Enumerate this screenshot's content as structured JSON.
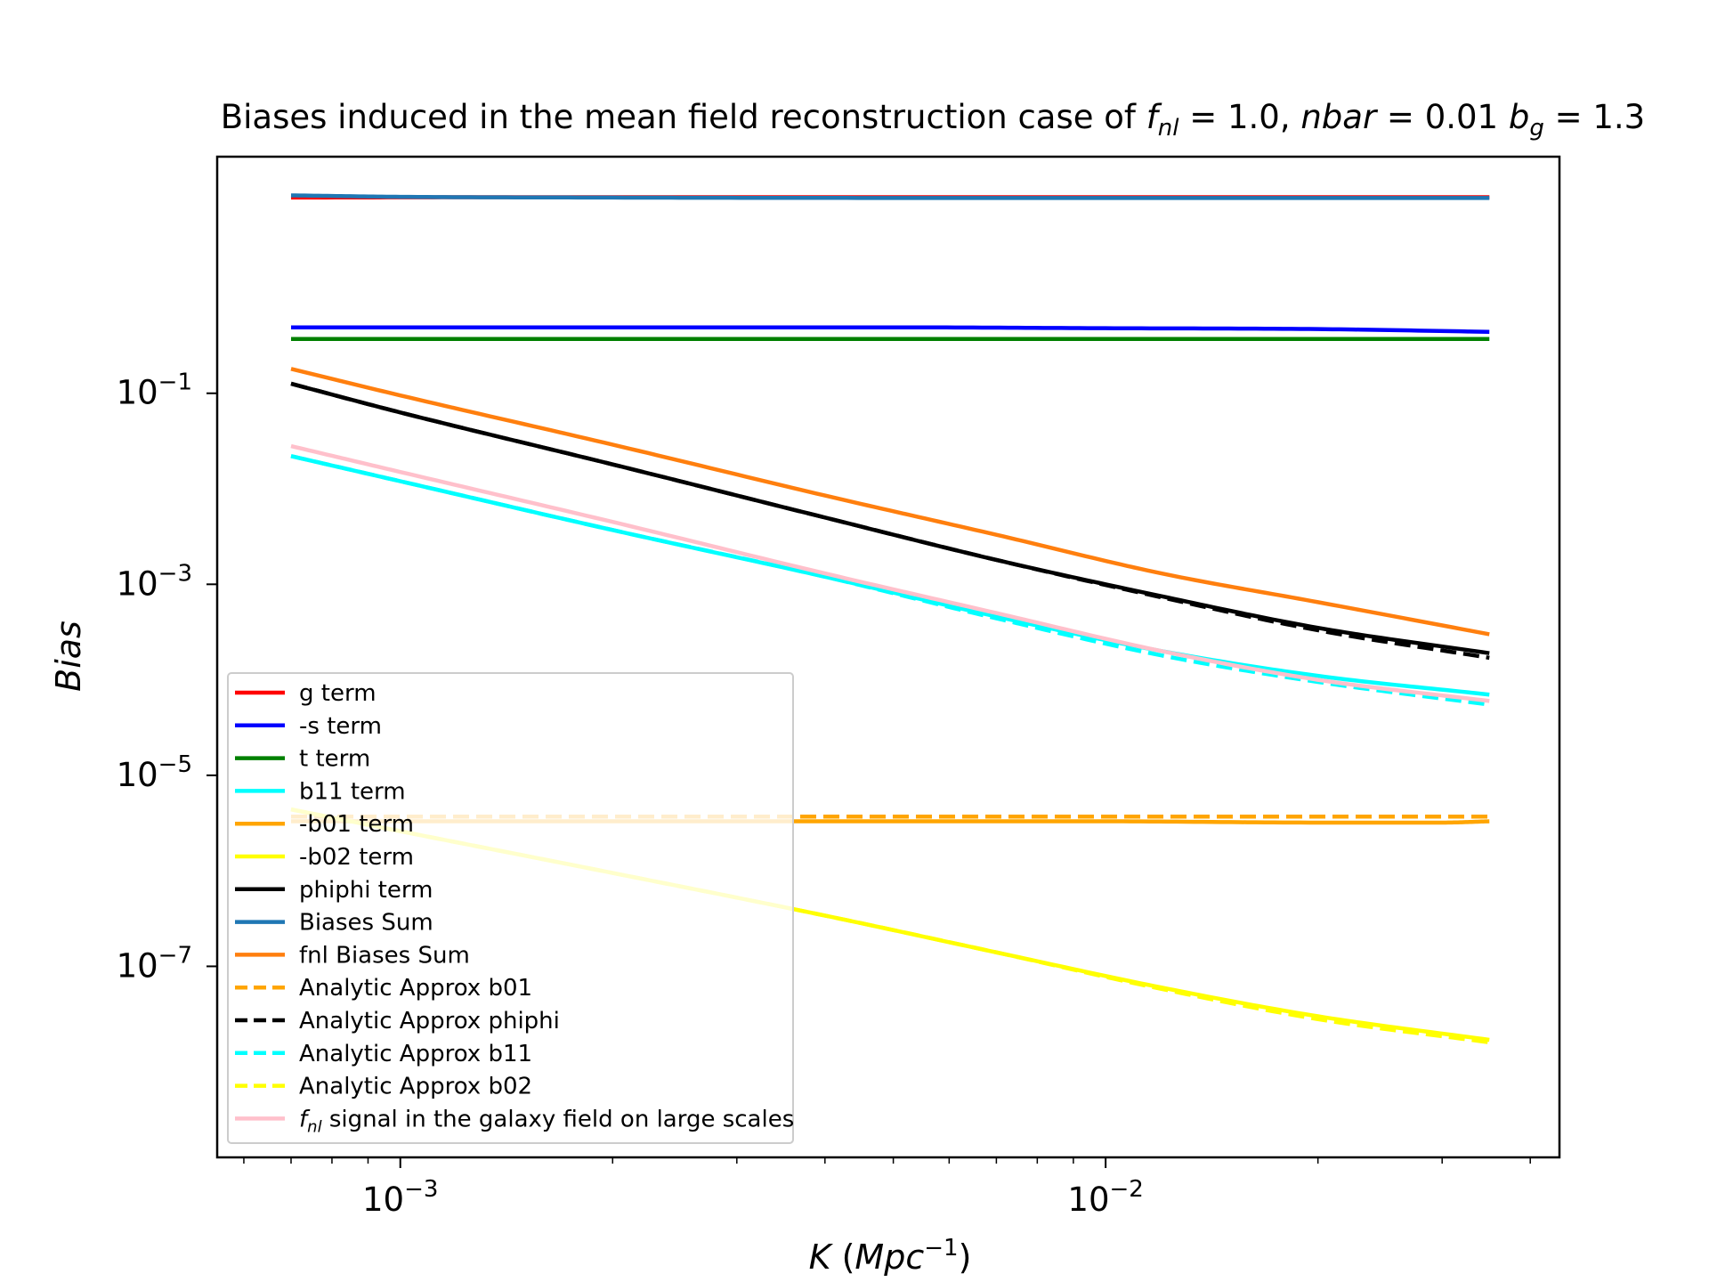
{
  "chart_data": {
    "type": "line",
    "title": {
      "prefix": "Biases induced in the mean field reconstruction case of ",
      "fnl_sym": "f",
      "fnl_sub": "nl",
      "fnl_eq": " = 1.0, ",
      "nbar_sym": "nbar",
      "nbar_eq": " = 0.01 ",
      "bg_sym": "b",
      "bg_sub": "g",
      "bg_eq": " = 1.3"
    },
    "xlabel": {
      "sym": "K",
      "unit_open": " (",
      "unit": "Mpc",
      "unit_sup": "−1",
      "unit_close": ")"
    },
    "ylabel": "Bias",
    "xscale": "log",
    "yscale": "log",
    "xlim": [
      0.00055,
      0.044
    ],
    "ylim": [
      1e-09,
      30
    ],
    "x_ticks": [
      {
        "value": 0.001,
        "base": "10",
        "exp": "−3"
      },
      {
        "value": 0.01,
        "base": "10",
        "exp": "−2"
      }
    ],
    "y_ticks": [
      {
        "value": 1e-07,
        "base": "10",
        "exp": "−7"
      },
      {
        "value": 1e-05,
        "base": "10",
        "exp": "−5"
      },
      {
        "value": 0.001,
        "base": "10",
        "exp": "−3"
      },
      {
        "value": 0.1,
        "base": "10",
        "exp": "−1"
      }
    ],
    "grid": false,
    "legend_position": "lower-left",
    "series": [
      {
        "name": "g term",
        "color": "#ff0000",
        "dash": "solid",
        "x": [
          0.0007,
          0.0014,
          0.003,
          0.008,
          0.02,
          0.035
        ],
        "y": [
          11.2,
          11.3,
          11.3,
          11.3,
          11.3,
          11.3
        ]
      },
      {
        "name": "-s term",
        "color": "#0000ff",
        "dash": "solid",
        "x": [
          0.0007,
          0.002,
          0.005,
          0.01,
          0.02,
          0.035
        ],
        "y": [
          0.49,
          0.49,
          0.49,
          0.48,
          0.47,
          0.44
        ]
      },
      {
        "name": "t term",
        "color": "#008000",
        "dash": "solid",
        "x": [
          0.0007,
          0.005,
          0.035
        ],
        "y": [
          0.37,
          0.37,
          0.37
        ]
      },
      {
        "name": "b11 term",
        "color": "#00ffff",
        "dash": "solid",
        "x": [
          0.0007,
          0.001,
          0.002,
          0.004,
          0.007,
          0.012,
          0.02,
          0.035
        ],
        "y": [
          0.022,
          0.012,
          0.0037,
          0.0012,
          0.00046,
          0.0002,
          0.00011,
          7e-05
        ]
      },
      {
        "name": "-b01 term",
        "color": "#ffa500",
        "dash": "solid",
        "x": [
          0.0007,
          0.001,
          0.002,
          0.005,
          0.01,
          0.02,
          0.03,
          0.035
        ],
        "y": [
          3.3e-06,
          3.3e-06,
          3.3e-06,
          3.3e-06,
          3.3e-06,
          3.2e-06,
          3.2e-06,
          3.3e-06
        ]
      },
      {
        "name": "-b02 term",
        "color": "#ffff00",
        "dash": "solid",
        "x": [
          0.0007,
          0.001,
          0.002,
          0.004,
          0.007,
          0.012,
          0.02,
          0.035
        ],
        "y": [
          4.4e-06,
          2.6e-06,
          9.5e-07,
          3.4e-07,
          1.4e-07,
          6e-08,
          3e-08,
          1.7e-08
        ]
      },
      {
        "name": "phiphi term",
        "color": "#000000",
        "dash": "solid",
        "x": [
          0.0007,
          0.001,
          0.002,
          0.004,
          0.007,
          0.012,
          0.02,
          0.035
        ],
        "y": [
          0.126,
          0.063,
          0.018,
          0.005,
          0.0018,
          0.00075,
          0.00035,
          0.00019
        ]
      },
      {
        "name": "Biases Sum",
        "color": "#1f77b4",
        "dash": "solid",
        "x": [
          0.0007,
          0.001,
          0.002,
          0.005,
          0.01,
          0.02,
          0.035
        ],
        "y": [
          11.8,
          11.4,
          11.2,
          11.1,
          11.1,
          11.1,
          11.1
        ]
      },
      {
        "name": "fnl Biases Sum",
        "color": "#ff7f0e",
        "dash": "solid",
        "x": [
          0.0007,
          0.001,
          0.002,
          0.004,
          0.007,
          0.012,
          0.02,
          0.035
        ],
        "y": [
          0.18,
          0.095,
          0.029,
          0.0085,
          0.0033,
          0.0013,
          0.00065,
          0.0003
        ]
      },
      {
        "name": "Analytic Approx b01",
        "color": "#ffa500",
        "dash": "dashed",
        "x": [
          0.0007,
          0.005,
          0.035
        ],
        "y": [
          3.7e-06,
          3.7e-06,
          3.7e-06
        ]
      },
      {
        "name": "Analytic Approx phiphi",
        "color": "#000000",
        "dash": "dashed",
        "x": [
          0.0007,
          0.001,
          0.002,
          0.004,
          0.007,
          0.012,
          0.02,
          0.035
        ],
        "y": [
          0.126,
          0.063,
          0.018,
          0.005,
          0.0018,
          0.00073,
          0.00033,
          0.00017
        ]
      },
      {
        "name": "Analytic Approx b11",
        "color": "#00ffff",
        "dash": "dashed",
        "x": [
          0.0007,
          0.001,
          0.002,
          0.004,
          0.007,
          0.012,
          0.02,
          0.035
        ],
        "y": [
          0.022,
          0.012,
          0.0037,
          0.0012,
          0.00044,
          0.00018,
          9.5e-05,
          5.5e-05
        ]
      },
      {
        "name": "Analytic Approx b02",
        "color": "#ffff00",
        "dash": "dashed",
        "x": [
          0.0007,
          0.001,
          0.002,
          0.004,
          0.007,
          0.012,
          0.02,
          0.035
        ],
        "y": [
          4.4e-06,
          2.6e-06,
          9.5e-07,
          3.4e-07,
          1.4e-07,
          5.8e-08,
          2.8e-08,
          1.6e-08
        ]
      },
      {
        "name_parts": {
          "sym": "f",
          "sub": "nl",
          "rest": " signal in the galaxy field on large scales"
        },
        "color": "#ffc0cb",
        "dash": "solid",
        "x": [
          0.0007,
          0.001,
          0.002,
          0.004,
          0.007,
          0.012,
          0.02,
          0.035
        ],
        "y": [
          0.028,
          0.015,
          0.0045,
          0.0013,
          0.0005,
          0.0002,
          0.0001,
          6e-05
        ]
      }
    ]
  }
}
